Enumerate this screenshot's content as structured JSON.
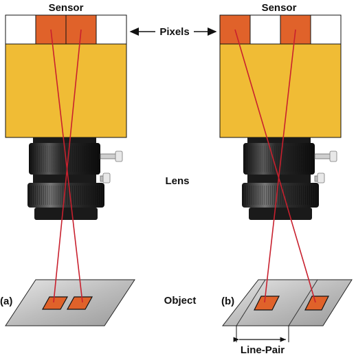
{
  "labels": {
    "sensor_left": "Sensor",
    "sensor_right": "Sensor",
    "pixels": "Pixels",
    "lens": "Lens",
    "object": "Object",
    "panel_a": "(a)",
    "panel_b": "(b)",
    "line_pair": "Line-Pair"
  },
  "colors": {
    "sensor_body": "#f0bc35",
    "pixel_active": "#e0622a",
    "pixel_inactive": "#ffffff",
    "ray": "#c8202e",
    "object_plate": "#b8b8b8",
    "lens_dark": "#1e1e1e"
  },
  "sensors": {
    "left_pixels": [
      "inactive",
      "active",
      "active",
      "inactive"
    ],
    "right_pixels": [
      "active",
      "inactive",
      "active",
      "inactive"
    ]
  }
}
